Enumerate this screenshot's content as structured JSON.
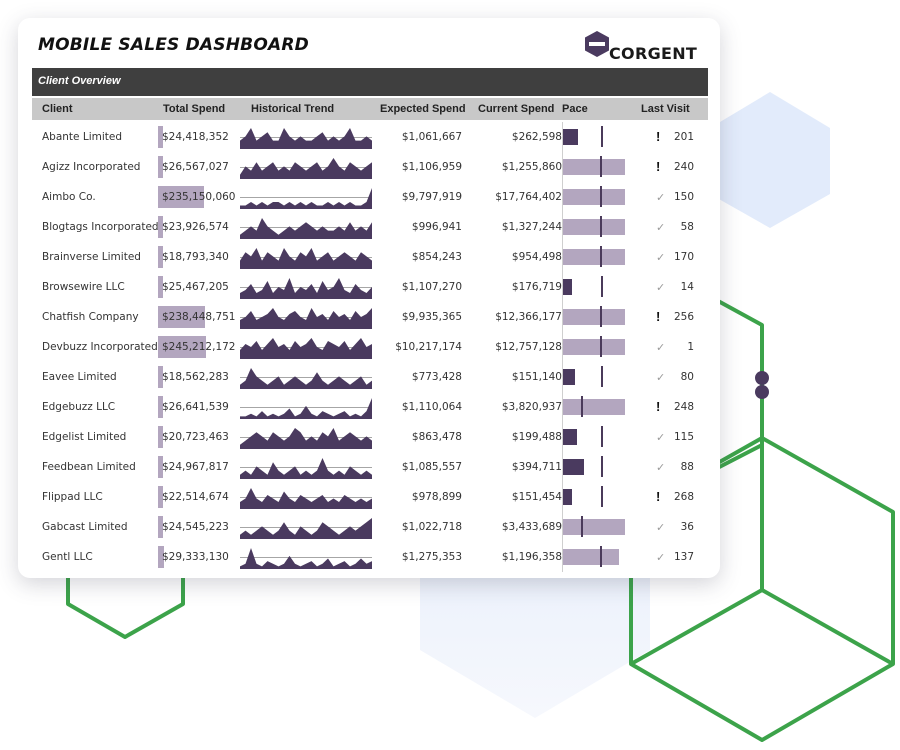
{
  "dashboard": {
    "title": "MOBILE SALES DASHBOARD",
    "logo_text": "CORGENT",
    "section_title": "Client Overview"
  },
  "columns": {
    "client": "Client",
    "total_spend": "Total Spend",
    "historical_trend": "Historical Trend",
    "expected_spend": "Expected Spend",
    "current_spend": "Current Spend",
    "pace": "Pace",
    "last_visit": "Last Visit"
  },
  "colors": {
    "accent_dark": "#4a3a5f",
    "accent_light": "#b3a6bf",
    "header_bar": "#3f3f3f",
    "hex_green": "#3ca34a"
  },
  "rows": [
    {
      "client": "Abante Limited",
      "total_spend": "$24,418,352",
      "total_spend_value": 24418352,
      "expected_spend": "$1,061,667",
      "current_spend": "$262,598",
      "pace_pct": 25,
      "status_icon": "warning-icon",
      "last_visit": "201",
      "trend": [
        2,
        3,
        5,
        2,
        3,
        4,
        2,
        2,
        5,
        3,
        2,
        3,
        2,
        2,
        3,
        4,
        2,
        3,
        2,
        3,
        5,
        2,
        2,
        3,
        2
      ]
    },
    {
      "client": "Agizz Incorporated",
      "total_spend": "$26,567,027",
      "total_spend_value": 26567027,
      "expected_spend": "$1,106,959",
      "current_spend": "$1,255,860",
      "pace_pct": 113,
      "status_icon": "warning-icon",
      "last_visit": "240",
      "trend": [
        1,
        3,
        2,
        4,
        2,
        3,
        4,
        2,
        3,
        2,
        4,
        3,
        2,
        3,
        4,
        2,
        3,
        5,
        3,
        2,
        4,
        3,
        2,
        3,
        4
      ]
    },
    {
      "client": "Aimbo Co.",
      "total_spend": "$235,150,060",
      "total_spend_value": 235150060,
      "expected_spend": "$9,797,919",
      "current_spend": "$17,764,402",
      "pace_pct": 181,
      "status_icon": "check-icon",
      "last_visit": "150",
      "trend": [
        1,
        1,
        2,
        1,
        2,
        1,
        2,
        2,
        1,
        2,
        1,
        2,
        1,
        2,
        1,
        1,
        2,
        1,
        2,
        1,
        2,
        1,
        1,
        2,
        6
      ]
    },
    {
      "client": "Blogtags Incorporated",
      "total_spend": "$23,926,574",
      "total_spend_value": 23926574,
      "expected_spend": "$996,941",
      "current_spend": "$1,327,244",
      "pace_pct": 133,
      "status_icon": "check-icon",
      "last_visit": "58",
      "trend": [
        1,
        2,
        3,
        2,
        5,
        3,
        2,
        1,
        2,
        3,
        2,
        3,
        4,
        3,
        2,
        3,
        2,
        2,
        3,
        2,
        4,
        2,
        3,
        2,
        4
      ]
    },
    {
      "client": "Brainverse Limited",
      "total_spend": "$18,793,340",
      "total_spend_value": 18793340,
      "expected_spend": "$854,243",
      "current_spend": "$954,498",
      "pace_pct": 112,
      "status_icon": "check-icon",
      "last_visit": "170",
      "trend": [
        2,
        4,
        3,
        5,
        2,
        4,
        3,
        2,
        5,
        3,
        2,
        4,
        3,
        5,
        2,
        3,
        4,
        2,
        3,
        4,
        3,
        2,
        4,
        3,
        2
      ]
    },
    {
      "client": "Browsewire LLC",
      "total_spend": "$25,467,205",
      "total_spend_value": 25467205,
      "expected_spend": "$1,107,270",
      "current_spend": "$176,719",
      "pace_pct": 16,
      "status_icon": "check-icon",
      "last_visit": "14",
      "trend": [
        2,
        3,
        5,
        2,
        3,
        6,
        2,
        4,
        3,
        7,
        2,
        4,
        3,
        5,
        2,
        6,
        3,
        4,
        7,
        3,
        2,
        5,
        3,
        2,
        4
      ]
    },
    {
      "client": "Chatfish Company",
      "total_spend": "$238,448,751",
      "total_spend_value": 238448751,
      "expected_spend": "$9,935,365",
      "current_spend": "$12,366,177",
      "pace_pct": 124,
      "status_icon": "warning-icon",
      "last_visit": "256",
      "trend": [
        3,
        4,
        6,
        3,
        4,
        5,
        7,
        4,
        3,
        5,
        6,
        4,
        3,
        7,
        4,
        5,
        3,
        6,
        4,
        5,
        3,
        6,
        4,
        5,
        7
      ]
    },
    {
      "client": "Devbuzz Incorporated",
      "total_spend": "$245,212,172",
      "total_spend_value": 245212172,
      "expected_spend": "$10,217,174",
      "current_spend": "$12,757,128",
      "pace_pct": 125,
      "status_icon": "check-icon",
      "last_visit": "1",
      "trend": [
        3,
        5,
        4,
        6,
        3,
        5,
        7,
        4,
        5,
        3,
        6,
        4,
        5,
        7,
        4,
        3,
        6,
        5,
        4,
        6,
        3,
        5,
        7,
        4,
        5
      ]
    },
    {
      "client": "Eavee Limited",
      "total_spend": "$18,562,283",
      "total_spend_value": 18562283,
      "expected_spend": "$773,428",
      "current_spend": "$151,140",
      "pace_pct": 20,
      "status_icon": "check-icon",
      "last_visit": "80",
      "trend": [
        1,
        2,
        5,
        3,
        2,
        1,
        2,
        3,
        1,
        2,
        3,
        2,
        1,
        2,
        4,
        2,
        1,
        2,
        3,
        2,
        1,
        2,
        3,
        1,
        2
      ]
    },
    {
      "client": "Edgebuzz LLC",
      "total_spend": "$26,641,539",
      "total_spend_value": 26641539,
      "expected_spend": "$1,110,064",
      "current_spend": "$3,820,937",
      "pace_pct": 344,
      "status_icon": "warning-icon",
      "last_visit": "248",
      "trend": [
        1,
        1,
        2,
        1,
        3,
        1,
        2,
        1,
        2,
        4,
        1,
        2,
        5,
        2,
        1,
        3,
        2,
        1,
        2,
        3,
        1,
        2,
        1,
        3,
        8
      ]
    },
    {
      "client": "Edgelist Limited",
      "total_spend": "$20,723,463",
      "total_spend_value": 20723463,
      "expected_spend": "$863,478",
      "current_spend": "$199,488",
      "pace_pct": 23,
      "status_icon": "check-icon",
      "last_visit": "115",
      "trend": [
        1,
        2,
        3,
        4,
        3,
        2,
        4,
        3,
        2,
        3,
        5,
        4,
        2,
        3,
        2,
        4,
        3,
        5,
        2,
        3,
        4,
        3,
        2,
        3,
        2
      ]
    },
    {
      "client": "Feedbean Limited",
      "total_spend": "$24,967,817",
      "total_spend_value": 24967817,
      "expected_spend": "$1,085,557",
      "current_spend": "$394,711",
      "pace_pct": 36,
      "status_icon": "check-icon",
      "last_visit": "88",
      "trend": [
        1,
        2,
        1,
        3,
        2,
        1,
        4,
        2,
        1,
        2,
        3,
        1,
        2,
        1,
        2,
        5,
        2,
        1,
        2,
        1,
        3,
        2,
        1,
        2,
        1
      ]
    },
    {
      "client": "Flippad LLC",
      "total_spend": "$22,514,674",
      "total_spend_value": 22514674,
      "expected_spend": "$978,899",
      "current_spend": "$151,454",
      "pace_pct": 15,
      "status_icon": "warning-icon",
      "last_visit": "268",
      "trend": [
        2,
        3,
        6,
        3,
        2,
        4,
        3,
        2,
        5,
        3,
        2,
        4,
        3,
        2,
        3,
        4,
        2,
        3,
        2,
        4,
        3,
        2,
        3,
        2,
        3
      ]
    },
    {
      "client": "Gabcast Limited",
      "total_spend": "$24,545,223",
      "total_spend_value": 24545223,
      "expected_spend": "$1,022,718",
      "current_spend": "$3,433,689",
      "pace_pct": 336,
      "status_icon": "check-icon",
      "last_visit": "36",
      "trend": [
        1,
        2,
        1,
        2,
        3,
        2,
        1,
        2,
        4,
        2,
        1,
        3,
        2,
        1,
        2,
        4,
        3,
        2,
        1,
        2,
        3,
        2,
        3,
        4,
        5
      ]
    },
    {
      "client": "Gentl LLC",
      "total_spend": "$29,333,130",
      "total_spend_value": 29333130,
      "expected_spend": "$1,275,353",
      "current_spend": "$1,196,358",
      "pace_pct": 94,
      "status_icon": "check-icon",
      "last_visit": "137",
      "trend": [
        1,
        2,
        8,
        2,
        1,
        3,
        2,
        1,
        2,
        5,
        2,
        1,
        2,
        3,
        1,
        2,
        4,
        1,
        2,
        3,
        1,
        2,
        4,
        2,
        3
      ]
    }
  ]
}
